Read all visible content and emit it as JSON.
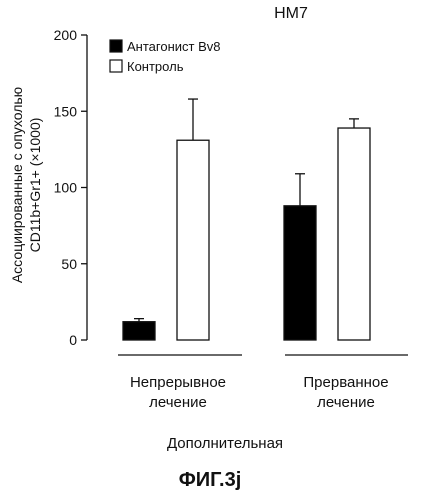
{
  "chart_data": {
    "type": "bar",
    "title": "HM7",
    "ylabel_line1": "Ассоциированные с опухолью",
    "ylabel_line2": "CD11b+Gr1+ (×1000)",
    "ylim": [
      0,
      200
    ],
    "yticks": [
      0,
      50,
      100,
      150,
      200
    ],
    "grid": false,
    "legend_position": "top-left",
    "categories": [
      {
        "line1": "Непрерывное",
        "line2": "лечение"
      },
      {
        "line1": "Прерванное",
        "line2": "лечение"
      }
    ],
    "series": [
      {
        "name": "Антагонист Bv8",
        "color": "#000000",
        "values": [
          12,
          88
        ],
        "errors": [
          2,
          21
        ]
      },
      {
        "name": "Контроль",
        "color": "#ffffff",
        "values": [
          131,
          139
        ],
        "errors": [
          27,
          6
        ]
      }
    ],
    "footer_label": "Дополнительная",
    "figure_label": "ФИГ.3j"
  }
}
